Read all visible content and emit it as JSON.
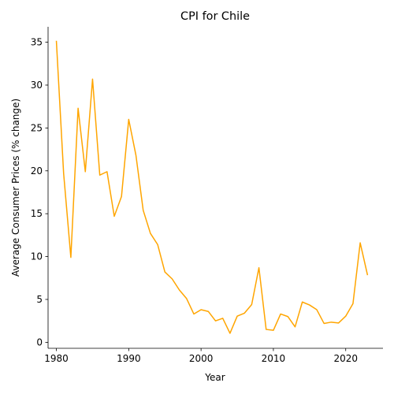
{
  "chart_data": {
    "type": "line",
    "title": "CPI for Chile",
    "xlabel": "Year",
    "ylabel": "Average Consumer Prices (% change)",
    "xlim": [
      1978.85,
      2025.15
    ],
    "ylim": [
      -0.7,
      36.8
    ],
    "xticks": [
      1980,
      1990,
      2000,
      2010,
      2020
    ],
    "yticks": [
      0,
      5,
      10,
      15,
      20,
      25,
      30,
      35
    ],
    "grid": false,
    "color": "#ffa500",
    "x": [
      1980,
      1981,
      1982,
      1983,
      1984,
      1985,
      1986,
      1987,
      1988,
      1989,
      1990,
      1991,
      1992,
      1993,
      1994,
      1995,
      1996,
      1997,
      1998,
      1999,
      2000,
      2001,
      2002,
      2003,
      2004,
      2005,
      2006,
      2007,
      2008,
      2009,
      2010,
      2011,
      2012,
      2013,
      2014,
      2015,
      2016,
      2017,
      2018,
      2019,
      2020,
      2021,
      2022,
      2023
    ],
    "y": [
      35.1,
      19.7,
      9.9,
      27.3,
      19.9,
      30.7,
      19.5,
      19.9,
      14.7,
      17.0,
      26.0,
      21.8,
      15.4,
      12.7,
      11.4,
      8.2,
      7.4,
      6.1,
      5.1,
      3.3,
      3.8,
      3.6,
      2.5,
      2.8,
      1.05,
      3.05,
      3.4,
      4.4,
      8.7,
      1.5,
      1.4,
      3.3,
      3.0,
      1.8,
      4.7,
      4.35,
      3.8,
      2.2,
      2.35,
      2.25,
      3.05,
      4.5,
      11.6,
      7.9
    ]
  }
}
